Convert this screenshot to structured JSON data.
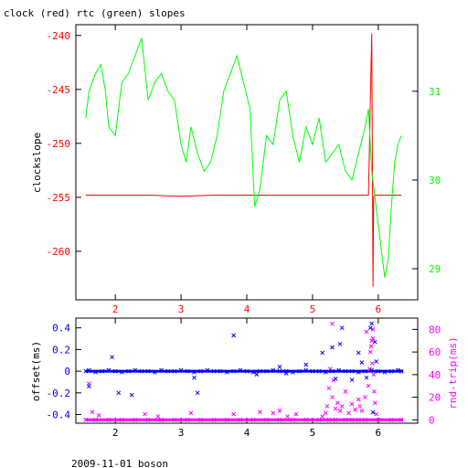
{
  "title": "clock (red) rtc (green) slopes",
  "footer": "2009-11-01 boson",
  "colors": {
    "axis": "#000000",
    "clock": "#ff0000",
    "rtc": "#00ff00",
    "offset": "#0000ff",
    "rndtrip": "#ff00ff"
  },
  "chart_data": [
    {
      "type": "line",
      "ylabel": "clockslope",
      "xlim": [
        1.4,
        6.6
      ],
      "ylim": [
        -264.5,
        -239
      ],
      "y2lim": [
        28.65,
        31.75
      ],
      "xticks": [
        "2",
        "3",
        "4",
        "5",
        "6"
      ],
      "xtick_values": [
        2,
        3,
        4,
        5,
        6
      ],
      "yticks": [
        "-240",
        "-245",
        "-250",
        "-255",
        "-260"
      ],
      "ytick_values": [
        -240,
        -245,
        -250,
        -255,
        -260
      ],
      "y2ticks": [
        "31",
        "30",
        "29"
      ],
      "y2tick_values": [
        31,
        30,
        29
      ],
      "series": [
        {
          "name": "clock",
          "x": [
            1.55,
            2.0,
            2.5,
            3.0,
            3.5,
            4.0,
            4.5,
            5.0,
            5.5,
            5.85,
            5.9,
            5.92,
            5.93,
            5.95,
            6.1,
            6.35
          ],
          "y": [
            -254.8,
            -254.8,
            -254.8,
            -254.9,
            -254.8,
            -254.8,
            -254.8,
            -254.8,
            -254.8,
            -254.8,
            -239.8,
            -263.3,
            -255.0,
            -254.8,
            -254.8,
            -254.8
          ]
        },
        {
          "name": "rtc",
          "x": [
            1.55,
            1.6,
            1.7,
            1.78,
            1.85,
            1.9,
            2.0,
            2.1,
            2.2,
            2.3,
            2.4,
            2.5,
            2.6,
            2.7,
            2.8,
            2.9,
            3.0,
            3.08,
            3.15,
            3.25,
            3.35,
            3.45,
            3.55,
            3.65,
            3.75,
            3.85,
            3.95,
            4.05,
            4.12,
            4.2,
            4.3,
            4.4,
            4.5,
            4.6,
            4.7,
            4.8,
            4.9,
            5.0,
            5.1,
            5.2,
            5.3,
            5.4,
            5.5,
            5.6,
            5.7,
            5.8,
            5.85,
            5.9,
            5.95,
            6.0,
            6.05,
            6.1,
            6.15,
            6.2,
            6.25,
            6.3,
            6.35
          ],
          "y": [
            30.7,
            31.0,
            31.2,
            31.3,
            31.0,
            30.6,
            30.5,
            31.1,
            31.2,
            31.4,
            31.6,
            30.9,
            31.1,
            31.2,
            31.0,
            30.9,
            30.4,
            30.2,
            30.6,
            30.3,
            30.1,
            30.2,
            30.5,
            31.0,
            31.2,
            31.4,
            31.1,
            30.8,
            29.7,
            29.9,
            30.5,
            30.4,
            30.9,
            31.0,
            30.5,
            30.2,
            30.6,
            30.4,
            30.7,
            30.2,
            30.3,
            30.4,
            30.1,
            30.0,
            30.3,
            30.6,
            30.8,
            30.1,
            29.8,
            29.5,
            29.2,
            28.9,
            29.1,
            29.7,
            30.2,
            30.4,
            30.5
          ]
        }
      ]
    },
    {
      "type": "scatter",
      "ylabel": "offset(ms)",
      "y2label": "rnd-trip(ms)",
      "xlim": [
        1.4,
        6.6
      ],
      "ylim": [
        -0.48,
        0.49
      ],
      "y2lim": [
        -3,
        90
      ],
      "xticks": [
        "2",
        "3",
        "4",
        "5",
        "6"
      ],
      "xtick_values": [
        2,
        3,
        4,
        5,
        6
      ],
      "yticks": [
        "0.4",
        "0.2",
        "0",
        "-0.2",
        "-0.4"
      ],
      "ytick_values": [
        0.4,
        0.2,
        0,
        -0.2,
        -0.4
      ],
      "y2ticks": [
        "80",
        "60",
        "40",
        "20",
        "0"
      ],
      "y2tick_values": [
        80,
        60,
        40,
        20,
        0
      ],
      "series": [
        {
          "name": "offset",
          "x": [
            1.55,
            1.6,
            1.7,
            1.8,
            1.9,
            2.0,
            2.1,
            2.2,
            2.3,
            2.4,
            2.5,
            2.6,
            2.7,
            2.8,
            2.9,
            3.0,
            3.1,
            3.2,
            3.3,
            3.4,
            3.5,
            3.6,
            3.7,
            3.8,
            3.9,
            4.0,
            4.1,
            4.2,
            4.3,
            4.4,
            4.5,
            4.6,
            4.7,
            4.8,
            4.9,
            5.0,
            5.1,
            5.2,
            5.3,
            5.4,
            5.5,
            5.6,
            5.7,
            5.8,
            5.9,
            6.0,
            6.1,
            6.2,
            6.3,
            6.35,
            1.95,
            2.05,
            3.2,
            3.25,
            3.8,
            4.15,
            4.5,
            4.9,
            5.15,
            5.3,
            5.35,
            5.42,
            5.45,
            5.6,
            5.7,
            5.75,
            5.82,
            5.88,
            5.9,
            5.92,
            5.95,
            5.97,
            4.6,
            2.25,
            1.6
          ],
          "y": [
            0,
            0.01,
            -0.01,
            0,
            0.01,
            0,
            -0.01,
            0,
            0.01,
            0,
            0,
            -0.01,
            0.01,
            0,
            0,
            0.01,
            0,
            -0.01,
            0,
            0.01,
            0,
            0,
            -0.01,
            0,
            0.01,
            0,
            -0.01,
            0,
            0,
            0.01,
            0,
            0,
            -0.01,
            0,
            0.01,
            0,
            0,
            -0.01,
            0,
            0.01,
            0,
            0,
            -0.01,
            0,
            0.01,
            0,
            -0.01,
            0,
            0.01,
            0,
            0.13,
            -0.2,
            -0.06,
            -0.2,
            0.33,
            -0.03,
            0.04,
            0.06,
            0.17,
            0.22,
            -0.07,
            0.25,
            0.4,
            -0.08,
            0.17,
            0.08,
            -0.06,
            0.4,
            0.44,
            -0.38,
            0.27,
            0.09,
            -0.02,
            -0.22,
            -0.14
          ],
          "marker": "x"
        },
        {
          "name": "rnd-trip",
          "x": [
            1.55,
            1.7,
            1.9,
            2.1,
            2.3,
            2.5,
            2.7,
            2.9,
            3.1,
            3.3,
            3.5,
            3.7,
            3.9,
            4.1,
            4.3,
            4.5,
            4.7,
            4.9,
            5.1,
            5.25,
            5.35,
            5.5,
            5.6,
            5.7,
            5.8,
            6.0,
            6.2,
            6.35,
            1.6,
            1.65,
            1.75,
            2.45,
            2.65,
            3.15,
            3.8,
            4.2,
            4.4,
            4.5,
            4.62,
            4.75,
            5.15,
            5.2,
            5.22,
            5.25,
            5.27,
            5.3,
            5.32,
            5.35,
            5.38,
            5.42,
            5.45,
            5.5,
            5.55,
            5.6,
            5.65,
            5.7,
            5.72,
            5.75,
            5.8,
            5.85,
            5.87,
            5.88,
            5.9,
            5.91,
            5.92,
            5.93,
            5.94,
            5.95,
            5.97,
            5.3,
            5.82,
            5.89,
            5.92
          ],
          "y": [
            0,
            0,
            0,
            0,
            0,
            0,
            0,
            0,
            0,
            0,
            0,
            0,
            0,
            0,
            0,
            0,
            0,
            0,
            0,
            0,
            0,
            0,
            0,
            0,
            0,
            0,
            0,
            0,
            32,
            7,
            4,
            5,
            3,
            6,
            5,
            7,
            6,
            8,
            3,
            5,
            3,
            6,
            12,
            28,
            45,
            20,
            35,
            10,
            15,
            8,
            12,
            25,
            6,
            14,
            9,
            18,
            12,
            8,
            20,
            30,
            45,
            60,
            70,
            50,
            72,
            40,
            25,
            15,
            5,
            85,
            78,
            65,
            80
          ],
          "marker": "x"
        }
      ]
    }
  ]
}
